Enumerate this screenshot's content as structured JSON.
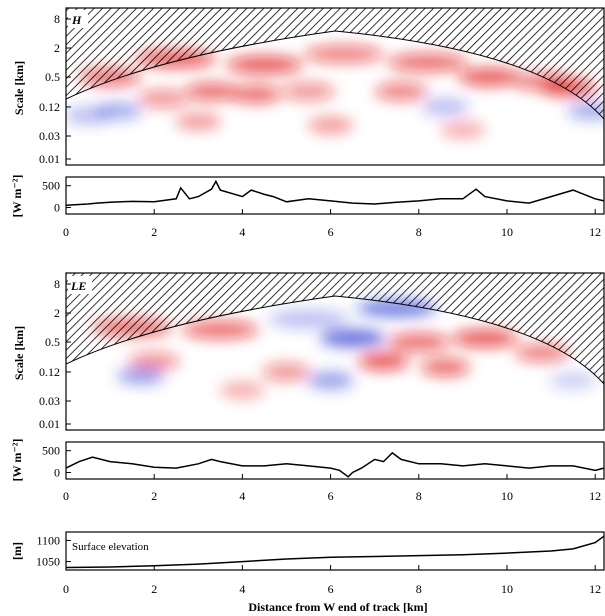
{
  "figure": {
    "x_axis_label": "Distance from W end of track [km]",
    "x_ticks": [
      "0",
      "2",
      "4",
      "6",
      "8",
      "10",
      "12"
    ],
    "scale_ticks": [
      "8",
      "2",
      "0.5",
      "0.12",
      "0.03",
      "0.01"
    ],
    "scale_axis_label": "Scale [km]",
    "flux_axis_label": "[W m⁻²]",
    "flux_ticks": [
      "500",
      "0"
    ],
    "elev_axis_label": "[m]",
    "elev_ticks": [
      "1100",
      "1050"
    ],
    "elev_annotation": "Surface elevation"
  },
  "chart_data": [
    {
      "type": "heatmap",
      "panel_label": "H",
      "xlim": [
        0,
        12.2
      ],
      "ylabel": "Scale [km]",
      "log_y": true,
      "colors": {
        "positive": "#e01010",
        "negative": "#2030d0"
      },
      "blobs": [
        {
          "x": 2.5,
          "scale": 1.2,
          "v": 0.9
        },
        {
          "x": 4.5,
          "scale": 0.9,
          "v": 0.9
        },
        {
          "x": 6.3,
          "scale": 1.5,
          "v": 0.7
        },
        {
          "x": 8.2,
          "scale": 1.0,
          "v": 0.8
        },
        {
          "x": 9.6,
          "scale": 0.5,
          "v": 0.9
        },
        {
          "x": 11.4,
          "scale": 0.3,
          "v": 0.9
        },
        {
          "x": 3.3,
          "scale": 0.25,
          "v": 0.8
        },
        {
          "x": 4.3,
          "scale": 0.22,
          "v": 0.8
        },
        {
          "x": 5.5,
          "scale": 0.25,
          "v": 0.6
        },
        {
          "x": 1.0,
          "scale": 0.5,
          "v": 0.8
        },
        {
          "x": 2.2,
          "scale": 0.18,
          "v": 0.6
        },
        {
          "x": 7.6,
          "scale": 0.25,
          "v": 0.7
        },
        {
          "x": 10.8,
          "scale": 0.4,
          "v": 0.7
        },
        {
          "x": 1.2,
          "scale": 0.1,
          "v": -0.5
        },
        {
          "x": 11.9,
          "scale": 0.1,
          "v": -0.5
        },
        {
          "x": 8.6,
          "scale": 0.12,
          "v": -0.4
        },
        {
          "x": 3.0,
          "scale": 0.06,
          "v": 0.5
        },
        {
          "x": 6.0,
          "scale": 0.05,
          "v": 0.5
        },
        {
          "x": 9.0,
          "scale": 0.04,
          "v": 0.4
        },
        {
          "x": 0.5,
          "scale": 0.08,
          "v": -0.4
        }
      ],
      "coi_top_km": 4.5
    },
    {
      "type": "line",
      "ylabel": "[W m⁻²]",
      "ylim": [
        -150,
        700
      ],
      "x": [
        0,
        0.5,
        0.7,
        1,
        1.5,
        2,
        2.5,
        2.6,
        2.8,
        3,
        3.3,
        3.4,
        3.5,
        4,
        4.2,
        4.5,
        4.7,
        5,
        5.5,
        6,
        6.5,
        7,
        7.5,
        8,
        8.5,
        9,
        9.3,
        9.5,
        10,
        10.5,
        11,
        11.5,
        12,
        12.2
      ],
      "y": [
        50,
        80,
        100,
        120,
        140,
        130,
        200,
        450,
        200,
        250,
        420,
        600,
        400,
        250,
        400,
        300,
        250,
        130,
        200,
        150,
        100,
        80,
        120,
        150,
        200,
        200,
        420,
        250,
        150,
        100,
        250,
        400,
        200,
        150
      ]
    },
    {
      "type": "heatmap",
      "panel_label": "LE",
      "xlim": [
        0,
        12.2
      ],
      "ylabel": "Scale [km]",
      "log_y": true,
      "colors": {
        "positive": "#e01010",
        "negative": "#2030d0"
      },
      "blobs": [
        {
          "x": 1.5,
          "scale": 1.0,
          "v": 0.8
        },
        {
          "x": 3.5,
          "scale": 0.9,
          "v": 0.8
        },
        {
          "x": 5.5,
          "scale": 1.5,
          "v": -0.4
        },
        {
          "x": 6.5,
          "scale": 0.6,
          "v": -0.9
        },
        {
          "x": 7.5,
          "scale": 2.5,
          "v": -0.8
        },
        {
          "x": 8.0,
          "scale": 0.5,
          "v": 0.8
        },
        {
          "x": 9.5,
          "scale": 0.6,
          "v": 0.9
        },
        {
          "x": 7.2,
          "scale": 0.2,
          "v": 0.9
        },
        {
          "x": 8.6,
          "scale": 0.15,
          "v": 0.8
        },
        {
          "x": 2.0,
          "scale": 0.2,
          "v": 0.6
        },
        {
          "x": 1.7,
          "scale": 0.1,
          "v": -0.6
        },
        {
          "x": 6.0,
          "scale": 0.08,
          "v": -0.6
        },
        {
          "x": 5.0,
          "scale": 0.12,
          "v": 0.6
        },
        {
          "x": 10.8,
          "scale": 0.3,
          "v": 0.7
        },
        {
          "x": 4.0,
          "scale": 0.05,
          "v": 0.4
        },
        {
          "x": 11.5,
          "scale": 0.08,
          "v": -0.3
        }
      ],
      "coi_top_km": 4.5
    },
    {
      "type": "line",
      "ylabel": "[W m⁻²]",
      "ylim": [
        -150,
        700
      ],
      "x": [
        0,
        0.3,
        0.6,
        0.8,
        1,
        1.5,
        2,
        2.5,
        3,
        3.3,
        3.5,
        4,
        4.5,
        5,
        5.5,
        6,
        6.2,
        6.4,
        6.5,
        6.7,
        7,
        7.2,
        7.4,
        7.6,
        8,
        8.5,
        9,
        9.5,
        10,
        10.5,
        11,
        11.5,
        12,
        12.2
      ],
      "y": [
        100,
        250,
        350,
        300,
        250,
        200,
        120,
        100,
        200,
        300,
        250,
        150,
        150,
        200,
        150,
        100,
        50,
        -100,
        0,
        100,
        300,
        250,
        450,
        300,
        200,
        200,
        150,
        200,
        150,
        100,
        150,
        150,
        50,
        100
      ]
    },
    {
      "type": "line",
      "ylabel": "[m]",
      "ylim": [
        1030,
        1120
      ],
      "x": [
        0,
        1,
        2,
        3,
        4,
        5,
        6,
        7,
        8,
        9,
        10,
        11,
        11.5,
        12,
        12.2
      ],
      "y": [
        1036,
        1037,
        1040,
        1044,
        1050,
        1056,
        1060,
        1062,
        1064,
        1066,
        1070,
        1075,
        1080,
        1095,
        1110
      ]
    }
  ]
}
